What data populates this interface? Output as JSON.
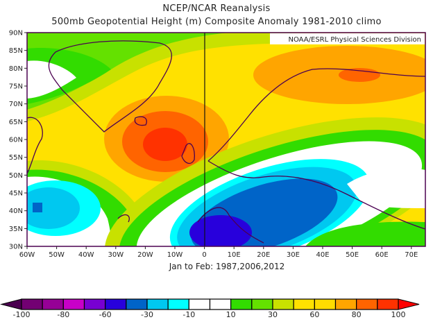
{
  "title": "NCEP/NCAR Reanalysis",
  "subtitle": "500mb Geopotential Height (m) Composite Anomaly 1981-2010 climo",
  "credit": "NOAA/ESRL Physical Sciences Division",
  "period": "Jan to Feb: 1987,2006,2012",
  "lat_labels": [
    "90N",
    "85N",
    "80N",
    "75N",
    "70N",
    "65N",
    "60N",
    "55N",
    "50N",
    "45N",
    "40N",
    "35N",
    "30N"
  ],
  "lon_labels": [
    "60W",
    "50W",
    "40W",
    "30W",
    "20W",
    "10W",
    "0",
    "10E",
    "20E",
    "30E",
    "40E",
    "50E",
    "60E",
    "70E"
  ],
  "colorbar": {
    "labels": [
      "-100",
      "-80",
      "-60",
      "-30",
      "-10",
      "10",
      "30",
      "60",
      "80",
      "100"
    ],
    "low_arrow_color": "#4b0050",
    "high_arrow_color": "#ff0000",
    "colors": [
      "#730073",
      "#960096",
      "#c800c8",
      "#7800d2",
      "#2800dc",
      "#0064c8",
      "#00c8f0",
      "#00ffff",
      "#ffffff",
      "#ffffff",
      "#32dc00",
      "#64e100",
      "#c8e100",
      "#ffe100",
      "#ffdc00",
      "#ffa500",
      "#ff6400",
      "#ff3200"
    ]
  }
}
